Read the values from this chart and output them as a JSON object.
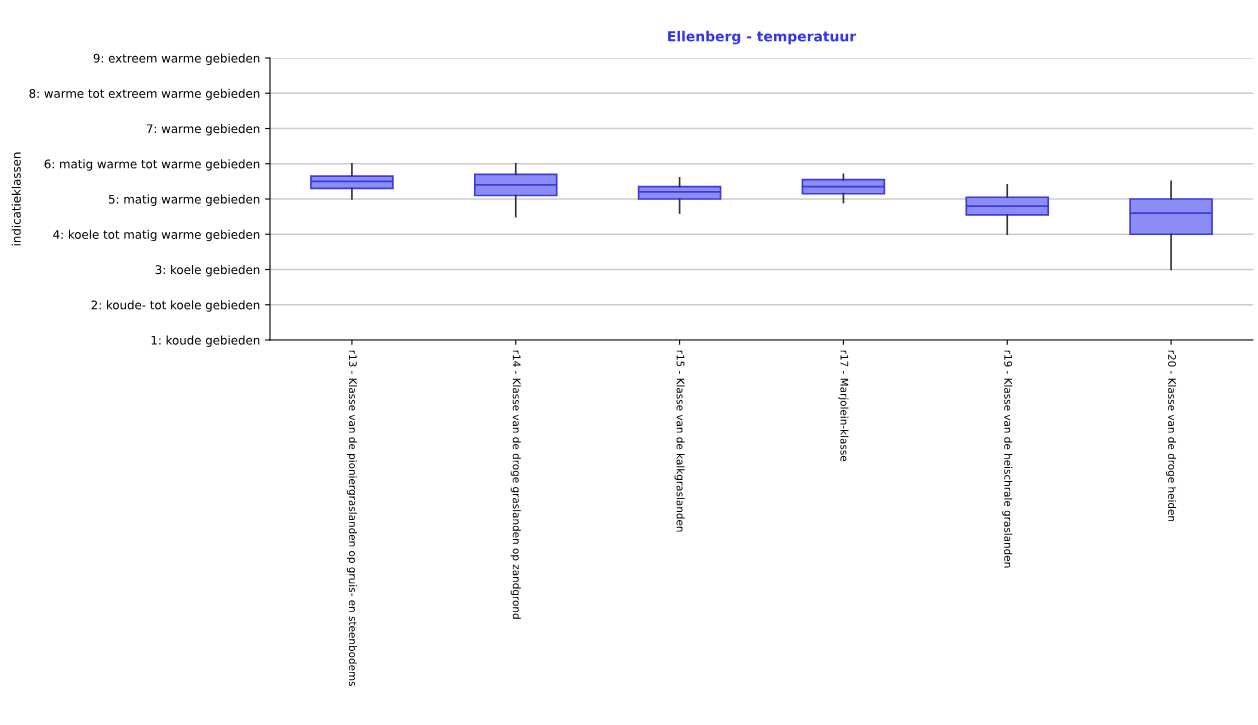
{
  "chart_data": {
    "type": "box",
    "title": "Ellenberg - temperatuur",
    "ylabel": "indicatieklassen",
    "categories": [
      "r13 - Klasse van de pioniergraslanden op gruis- en steenbodems",
      "r14 - Klasse van de droge graslanden op zandgrond",
      "r15 - Klasse van de kalkgraslanden",
      "r17 - Marjolein-klasse",
      "r19 - Klasse van de heischrale graslanden",
      "r20 - Klasse van de droge heiden"
    ],
    "boxes": [
      {
        "low": 5.0,
        "q1": 5.3,
        "median": 5.5,
        "q3": 5.65,
        "high": 6.0
      },
      {
        "low": 4.5,
        "q1": 5.1,
        "median": 5.4,
        "q3": 5.7,
        "high": 6.0
      },
      {
        "low": 4.6,
        "q1": 5.0,
        "median": 5.2,
        "q3": 5.35,
        "high": 5.6
      },
      {
        "low": 4.9,
        "q1": 5.15,
        "median": 5.35,
        "q3": 5.55,
        "high": 5.7
      },
      {
        "low": 4.0,
        "q1": 4.55,
        "median": 4.8,
        "q3": 5.05,
        "high": 5.4
      },
      {
        "low": 3.0,
        "q1": 4.0,
        "median": 4.6,
        "q3": 5.0,
        "high": 5.5
      }
    ],
    "color": "#8c8cf5",
    "ylim": [
      1,
      9
    ],
    "yticks": [
      {
        "value": 1,
        "label": "1: koude gebieden"
      },
      {
        "value": 2,
        "label": "2: koude- tot koele gebieden"
      },
      {
        "value": 3,
        "label": "3: koele gebieden"
      },
      {
        "value": 4,
        "label": "4: koele tot matig warme gebieden"
      },
      {
        "value": 5,
        "label": "5: matig warme gebieden"
      },
      {
        "value": 6,
        "label": "6: matig warme tot warme gebieden"
      },
      {
        "value": 7,
        "label": "7: warme gebieden"
      },
      {
        "value": 8,
        "label": "8: warme tot extreem warme gebieden"
      },
      {
        "value": 9,
        "label": "9: extreem warme gebieden"
      }
    ],
    "grid": "y",
    "legend": false
  }
}
